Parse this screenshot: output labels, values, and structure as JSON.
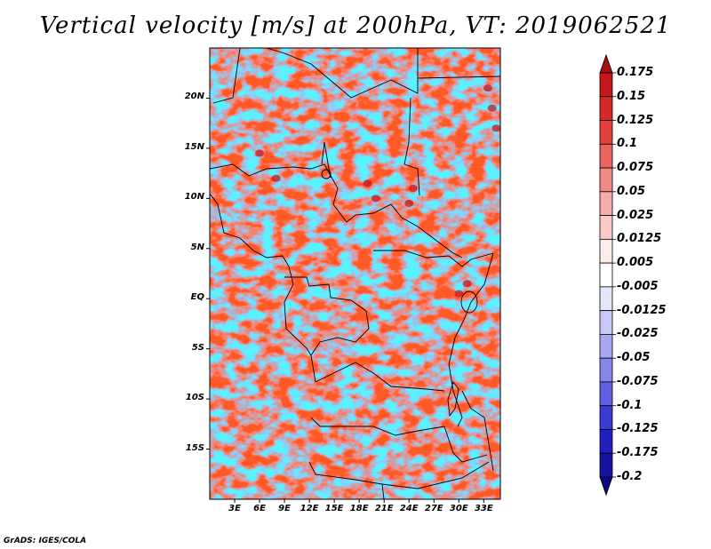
{
  "title": "Vertical velocity [m/s] at 200hPa, VT: 2019062521",
  "credit": "GrADS: IGES/COLA",
  "map": {
    "lon_range": [
      0,
      35
    ],
    "lat_range": [
      -20,
      25
    ],
    "lat_ticks": [
      {
        "value": 20,
        "label": "20N"
      },
      {
        "value": 15,
        "label": "15N"
      },
      {
        "value": 10,
        "label": "10N"
      },
      {
        "value": 5,
        "label": "5N"
      },
      {
        "value": 0,
        "label": "EQ"
      },
      {
        "value": -5,
        "label": "5S"
      },
      {
        "value": -10,
        "label": "10S"
      },
      {
        "value": -15,
        "label": "15S"
      }
    ],
    "lon_ticks": [
      {
        "value": 3,
        "label": "3E"
      },
      {
        "value": 6,
        "label": "6E"
      },
      {
        "value": 9,
        "label": "9E"
      },
      {
        "value": 12,
        "label": "12E"
      },
      {
        "value": 15,
        "label": "15E"
      },
      {
        "value": 18,
        "label": "18E"
      },
      {
        "value": 21,
        "label": "21E"
      },
      {
        "value": 24,
        "label": "24E"
      },
      {
        "value": 27,
        "label": "27E"
      },
      {
        "value": 30,
        "label": "30E"
      },
      {
        "value": 33,
        "label": "33E"
      }
    ]
  },
  "colorbar": {
    "levels": [
      "0.175",
      "0.15",
      "0.125",
      "0.1",
      "0.075",
      "0.05",
      "0.025",
      "0.0125",
      "0.005",
      "-0.005",
      "-0.0125",
      "-0.025",
      "-0.05",
      "-0.075",
      "-0.1",
      "-0.125",
      "-0.175",
      "-0.2"
    ],
    "colors": [
      "#a50f15",
      "#c4181d",
      "#d8292a",
      "#e33f3c",
      "#ec6462",
      "#f18a86",
      "#f6aca8",
      "#fccac6",
      "#feeceb",
      "#ffffff",
      "#e6e6fb",
      "#c8c8f7",
      "#a8a8f2",
      "#8585ec",
      "#5f5fe2",
      "#3a3ad4",
      "#2020be",
      "#1414a0",
      "#0a0a80"
    ]
  }
}
